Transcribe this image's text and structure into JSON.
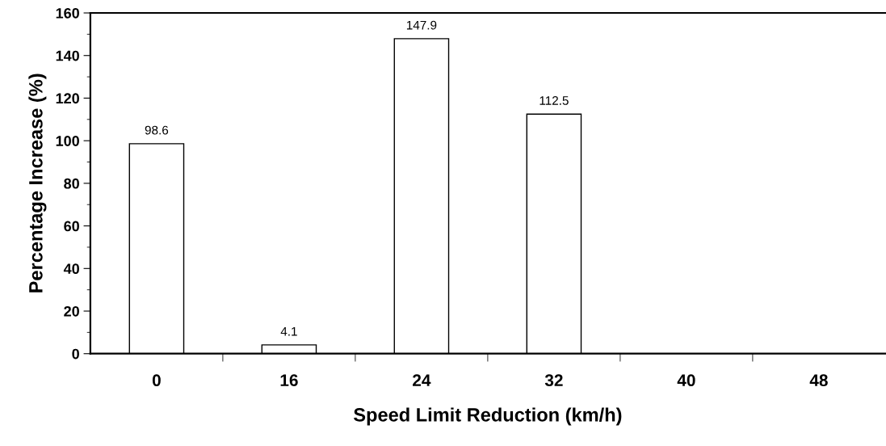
{
  "chart_data": {
    "type": "bar",
    "xlabel": "Speed Limit Reduction (km/h)",
    "ylabel": "Percentage Increase (%)",
    "categories": [
      "0",
      "16",
      "24",
      "32",
      "40",
      "48"
    ],
    "values": [
      98.6,
      4.1,
      147.9,
      112.5,
      null,
      null
    ],
    "color": "#ffffff",
    "ylim": [
      0,
      160
    ],
    "yticks": [
      0,
      20,
      40,
      60,
      80,
      100,
      120,
      140,
      160
    ],
    "data_labels": true,
    "grid": false,
    "legend": false
  }
}
